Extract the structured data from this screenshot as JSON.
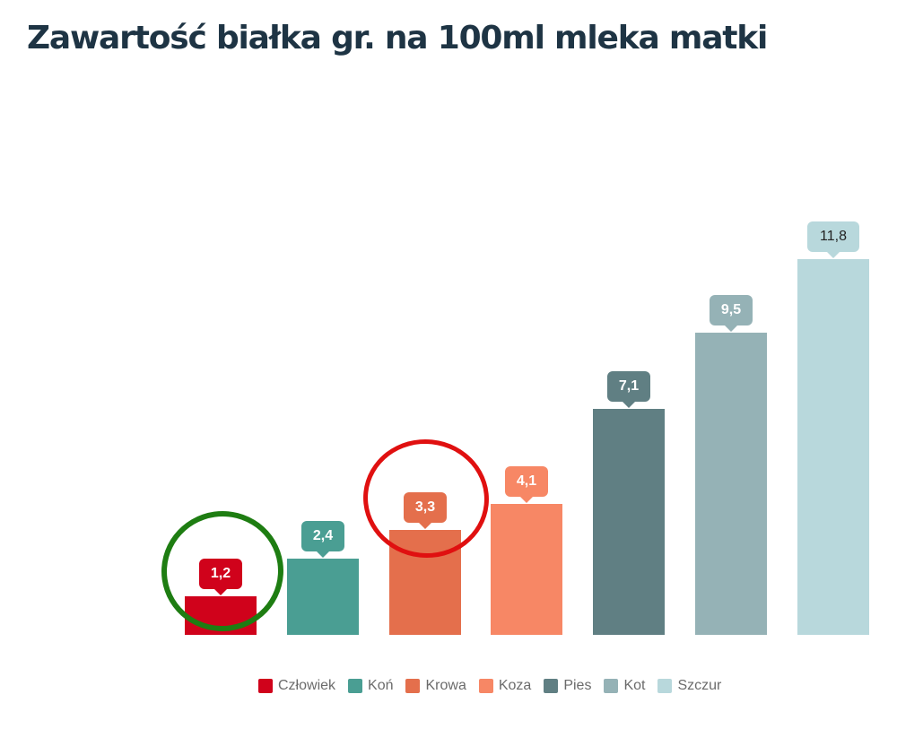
{
  "title": "Zawartość białka gr. na 100ml mleka matki",
  "chart_data": {
    "type": "bar",
    "title": "Zawartość białka gr. na 100ml mleka matki",
    "categories": [
      "Człowiek",
      "Koń",
      "Krowa",
      "Koza",
      "Pies",
      "Kot",
      "Szczur"
    ],
    "values": [
      1.2,
      2.4,
      3.3,
      4.1,
      7.1,
      9.5,
      11.8
    ],
    "value_labels": [
      "1,2",
      "2,4",
      "3,3",
      "4,1",
      "7,1",
      "9,5",
      "11,8"
    ],
    "colors": [
      "#d0021b",
      "#4a9e93",
      "#e46f4c",
      "#f78765",
      "#607f83",
      "#95b2b6",
      "#b8d8dc"
    ],
    "xlabel": "",
    "ylabel": "",
    "ylim": [
      0,
      12
    ],
    "grid": false,
    "legend_position": "bottom",
    "annotations": [
      {
        "type": "hand-drawn circle",
        "color": "#1e7d12",
        "target": "Człowiek"
      },
      {
        "type": "hand-drawn circle",
        "color": "#e01010",
        "target": "Krowa"
      }
    ]
  },
  "legend": [
    {
      "label": "Człowiek",
      "color": "#d0021b"
    },
    {
      "label": "Koń",
      "color": "#4a9e93"
    },
    {
      "label": "Krowa",
      "color": "#e46f4c"
    },
    {
      "label": "Koza",
      "color": "#f78765"
    },
    {
      "label": "Pies",
      "color": "#607f83"
    },
    {
      "label": "Kot",
      "color": "#95b2b6"
    },
    {
      "label": "Szczur",
      "color": "#b8d8dc"
    }
  ]
}
